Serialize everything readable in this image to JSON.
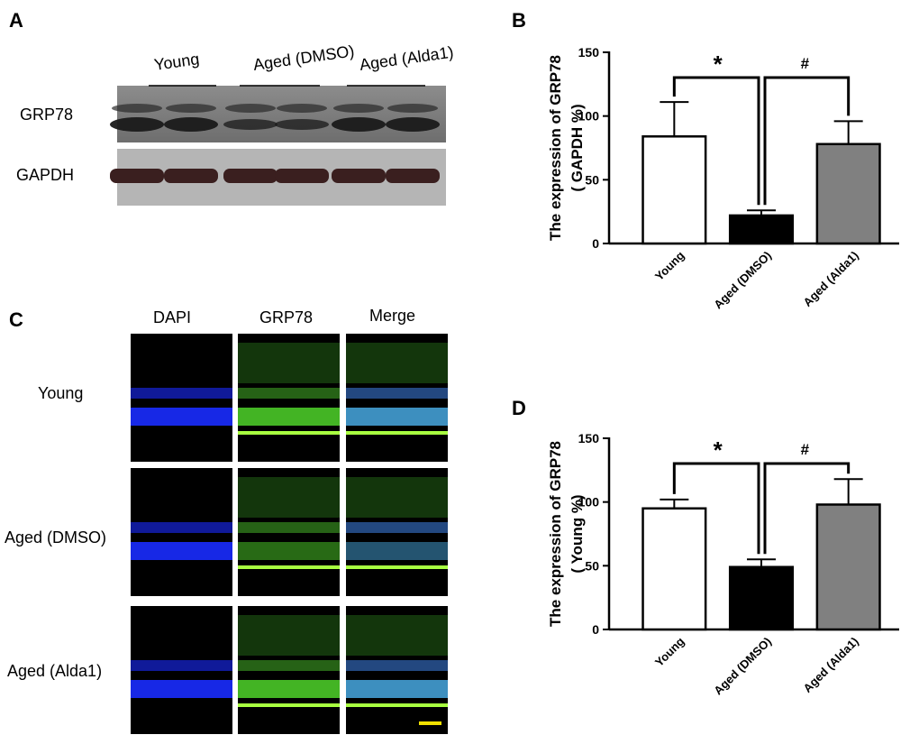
{
  "panels": {
    "a": "A",
    "b": "B",
    "c": "C",
    "d": "D"
  },
  "blot": {
    "groups": [
      "Young",
      "Aged (DMSO)",
      "Aged (Alda1)"
    ],
    "rows": [
      "GRP78",
      "GAPDH"
    ]
  },
  "micro": {
    "columns": [
      "DAPI",
      "GRP78",
      "Merge"
    ],
    "rows": [
      "Young",
      "Aged (DMSO)",
      "Aged (Alda1)"
    ]
  },
  "chart_data": [
    {
      "type": "bar",
      "ylabel": [
        "The expression of GRP78",
        "( GAPDH %)"
      ],
      "categories": [
        "Young",
        "Aged (DMSO)",
        "Aged (Alda1)"
      ],
      "values": [
        84,
        22,
        78
      ],
      "errors": [
        27,
        4,
        18
      ],
      "colors": [
        "#ffffff",
        "#000000",
        "#808080"
      ],
      "ylim": [
        0,
        150
      ],
      "yticks": [
        0,
        50,
        100,
        150
      ],
      "annotations": [
        "*",
        "#"
      ]
    },
    {
      "type": "bar",
      "ylabel": [
        "The expression of GRP78",
        "( Young %)"
      ],
      "categories": [
        "Young",
        "Aged (DMSO)",
        "Aged (Alda1)"
      ],
      "values": [
        95,
        49,
        98
      ],
      "errors": [
        7,
        6,
        20
      ],
      "colors": [
        "#ffffff",
        "#000000",
        "#808080"
      ],
      "ylim": [
        0,
        150
      ],
      "yticks": [
        0,
        50,
        100,
        150
      ],
      "annotations": [
        "*",
        "#"
      ]
    }
  ]
}
